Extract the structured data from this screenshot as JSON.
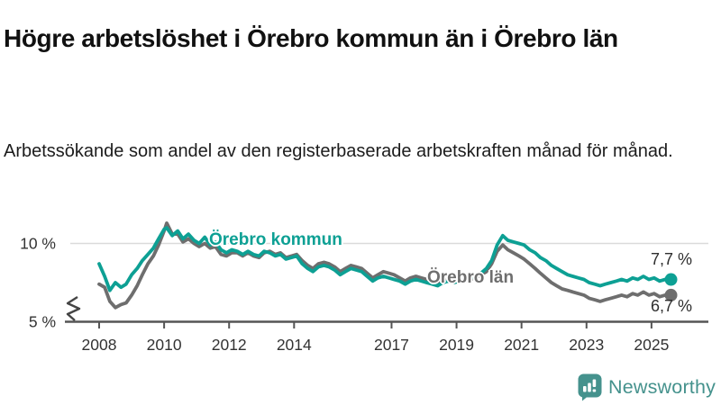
{
  "header": {
    "title": "Högre arbetslöshet i Örebro kommun än i Örebro län",
    "subtitle": "Arbetssökande som andel av den registerbaserade arbetskraften månad för månad."
  },
  "chart_data": {
    "type": "line",
    "unit": "percent of registered labour force",
    "x_range": [
      2008,
      2025.6
    ],
    "x_ticks": [
      2008,
      2010,
      2012,
      2014,
      2017,
      2019,
      2021,
      2023,
      2025
    ],
    "y_axis": {
      "ticks": [
        {
          "value": 10,
          "label": "10 %",
          "style": "gridline"
        },
        {
          "value": 5,
          "label": "5 %",
          "style": "baseline"
        }
      ],
      "axis_break": true
    },
    "colors": {
      "gridline": "#dadada",
      "axis": "#555555",
      "tick_text": "#333333"
    },
    "series": [
      {
        "name": "Örebro kommun",
        "color": "#0da094",
        "end_label": "7,7 %",
        "end_value": 7.7,
        "points": [
          [
            2008.0,
            8.7
          ],
          [
            2008.17,
            7.9
          ],
          [
            2008.33,
            7.0
          ],
          [
            2008.5,
            7.5
          ],
          [
            2008.67,
            7.2
          ],
          [
            2008.83,
            7.4
          ],
          [
            2009.0,
            8.0
          ],
          [
            2009.17,
            8.4
          ],
          [
            2009.33,
            8.9
          ],
          [
            2009.5,
            9.3
          ],
          [
            2009.67,
            9.7
          ],
          [
            2009.83,
            10.3
          ],
          [
            2010.0,
            10.9
          ],
          [
            2010.08,
            11.0
          ],
          [
            2010.25,
            10.5
          ],
          [
            2010.42,
            10.8
          ],
          [
            2010.58,
            10.3
          ],
          [
            2010.75,
            10.6
          ],
          [
            2010.92,
            10.2
          ],
          [
            2011.08,
            10.0
          ],
          [
            2011.25,
            10.4
          ],
          [
            2011.42,
            9.9
          ],
          [
            2011.58,
            10.1
          ],
          [
            2011.75,
            9.6
          ],
          [
            2011.92,
            9.4
          ],
          [
            2012.08,
            9.6
          ],
          [
            2012.25,
            9.5
          ],
          [
            2012.42,
            9.3
          ],
          [
            2012.58,
            9.5
          ],
          [
            2012.75,
            9.3
          ],
          [
            2012.92,
            9.2
          ],
          [
            2013.08,
            9.5
          ],
          [
            2013.25,
            9.4
          ],
          [
            2013.42,
            9.2
          ],
          [
            2013.58,
            9.3
          ],
          [
            2013.75,
            9.0
          ],
          [
            2013.92,
            9.1
          ],
          [
            2014.08,
            9.2
          ],
          [
            2014.25,
            8.7
          ],
          [
            2014.42,
            8.4
          ],
          [
            2014.58,
            8.2
          ],
          [
            2014.75,
            8.5
          ],
          [
            2014.92,
            8.6
          ],
          [
            2015.08,
            8.5
          ],
          [
            2015.25,
            8.3
          ],
          [
            2015.42,
            8.0
          ],
          [
            2015.58,
            8.2
          ],
          [
            2015.75,
            8.4
          ],
          [
            2015.92,
            8.3
          ],
          [
            2016.08,
            8.2
          ],
          [
            2016.25,
            7.9
          ],
          [
            2016.42,
            7.6
          ],
          [
            2016.58,
            7.8
          ],
          [
            2016.75,
            7.9
          ],
          [
            2016.92,
            7.8
          ],
          [
            2017.08,
            7.7
          ],
          [
            2017.25,
            7.6
          ],
          [
            2017.42,
            7.4
          ],
          [
            2017.58,
            7.6
          ],
          [
            2017.75,
            7.7
          ],
          [
            2017.92,
            7.6
          ],
          [
            2018.08,
            7.5
          ],
          [
            2018.25,
            7.4
          ],
          [
            2018.42,
            7.3
          ],
          [
            2018.58,
            7.5
          ],
          [
            2018.75,
            7.6
          ],
          [
            2018.92,
            7.5
          ],
          [
            2019.08,
            7.6
          ],
          [
            2019.25,
            7.7
          ],
          [
            2019.42,
            7.8
          ],
          [
            2019.58,
            7.9
          ],
          [
            2019.75,
            8.1
          ],
          [
            2019.92,
            8.4
          ],
          [
            2020.08,
            8.9
          ],
          [
            2020.25,
            9.9
          ],
          [
            2020.42,
            10.5
          ],
          [
            2020.58,
            10.2
          ],
          [
            2020.75,
            10.1
          ],
          [
            2020.92,
            10.0
          ],
          [
            2021.08,
            9.9
          ],
          [
            2021.25,
            9.6
          ],
          [
            2021.42,
            9.4
          ],
          [
            2021.58,
            9.1
          ],
          [
            2021.75,
            8.9
          ],
          [
            2021.92,
            8.6
          ],
          [
            2022.08,
            8.4
          ],
          [
            2022.25,
            8.2
          ],
          [
            2022.42,
            8.0
          ],
          [
            2022.58,
            7.9
          ],
          [
            2022.75,
            7.8
          ],
          [
            2022.92,
            7.7
          ],
          [
            2023.08,
            7.5
          ],
          [
            2023.25,
            7.4
          ],
          [
            2023.42,
            7.3
          ],
          [
            2023.58,
            7.4
          ],
          [
            2023.75,
            7.5
          ],
          [
            2023.92,
            7.6
          ],
          [
            2024.08,
            7.7
          ],
          [
            2024.25,
            7.6
          ],
          [
            2024.42,
            7.8
          ],
          [
            2024.58,
            7.7
          ],
          [
            2024.75,
            7.9
          ],
          [
            2024.92,
            7.7
          ],
          [
            2025.08,
            7.8
          ],
          [
            2025.25,
            7.6
          ],
          [
            2025.42,
            7.7
          ],
          [
            2025.6,
            7.7
          ]
        ]
      },
      {
        "name": "Örebro län",
        "color": "#6e6e6e",
        "end_label": "6,7 %",
        "end_value": 6.7,
        "points": [
          [
            2008.0,
            7.4
          ],
          [
            2008.17,
            7.2
          ],
          [
            2008.33,
            6.3
          ],
          [
            2008.5,
            5.9
          ],
          [
            2008.67,
            6.1
          ],
          [
            2008.83,
            6.2
          ],
          [
            2009.0,
            6.7
          ],
          [
            2009.17,
            7.3
          ],
          [
            2009.33,
            8.0
          ],
          [
            2009.5,
            8.7
          ],
          [
            2009.67,
            9.2
          ],
          [
            2009.83,
            9.9
          ],
          [
            2010.0,
            10.8
          ],
          [
            2010.08,
            11.3
          ],
          [
            2010.25,
            10.6
          ],
          [
            2010.42,
            10.6
          ],
          [
            2010.58,
            10.1
          ],
          [
            2010.75,
            10.3
          ],
          [
            2010.92,
            10.0
          ],
          [
            2011.08,
            9.8
          ],
          [
            2011.25,
            10.0
          ],
          [
            2011.42,
            9.7
          ],
          [
            2011.58,
            9.8
          ],
          [
            2011.75,
            9.3
          ],
          [
            2011.92,
            9.2
          ],
          [
            2012.08,
            9.4
          ],
          [
            2012.25,
            9.4
          ],
          [
            2012.42,
            9.2
          ],
          [
            2012.58,
            9.4
          ],
          [
            2012.75,
            9.2
          ],
          [
            2012.92,
            9.1
          ],
          [
            2013.08,
            9.4
          ],
          [
            2013.25,
            9.5
          ],
          [
            2013.42,
            9.3
          ],
          [
            2013.58,
            9.4
          ],
          [
            2013.75,
            9.1
          ],
          [
            2013.92,
            9.2
          ],
          [
            2014.08,
            9.3
          ],
          [
            2014.25,
            8.9
          ],
          [
            2014.42,
            8.6
          ],
          [
            2014.58,
            8.4
          ],
          [
            2014.75,
            8.7
          ],
          [
            2014.92,
            8.8
          ],
          [
            2015.08,
            8.7
          ],
          [
            2015.25,
            8.5
          ],
          [
            2015.42,
            8.2
          ],
          [
            2015.58,
            8.4
          ],
          [
            2015.75,
            8.6
          ],
          [
            2015.92,
            8.5
          ],
          [
            2016.08,
            8.4
          ],
          [
            2016.25,
            8.1
          ],
          [
            2016.42,
            7.8
          ],
          [
            2016.58,
            8.0
          ],
          [
            2016.75,
            8.2
          ],
          [
            2016.92,
            8.1
          ],
          [
            2017.08,
            8.0
          ],
          [
            2017.25,
            7.8
          ],
          [
            2017.42,
            7.6
          ],
          [
            2017.58,
            7.8
          ],
          [
            2017.75,
            7.9
          ],
          [
            2017.92,
            7.8
          ],
          [
            2018.08,
            7.7
          ],
          [
            2018.25,
            7.5
          ],
          [
            2018.42,
            7.4
          ],
          [
            2018.58,
            7.6
          ],
          [
            2018.75,
            7.7
          ],
          [
            2018.92,
            7.5
          ],
          [
            2019.08,
            7.6
          ],
          [
            2019.25,
            7.6
          ],
          [
            2019.42,
            7.7
          ],
          [
            2019.58,
            7.8
          ],
          [
            2019.75,
            8.0
          ],
          [
            2019.92,
            8.2
          ],
          [
            2020.08,
            8.7
          ],
          [
            2020.25,
            9.5
          ],
          [
            2020.42,
            9.9
          ],
          [
            2020.58,
            9.6
          ],
          [
            2020.75,
            9.4
          ],
          [
            2020.92,
            9.2
          ],
          [
            2021.08,
            9.0
          ],
          [
            2021.25,
            8.7
          ],
          [
            2021.42,
            8.4
          ],
          [
            2021.58,
            8.1
          ],
          [
            2021.75,
            7.8
          ],
          [
            2021.92,
            7.5
          ],
          [
            2022.08,
            7.3
          ],
          [
            2022.25,
            7.1
          ],
          [
            2022.42,
            7.0
          ],
          [
            2022.58,
            6.9
          ],
          [
            2022.75,
            6.8
          ],
          [
            2022.92,
            6.7
          ],
          [
            2023.08,
            6.5
          ],
          [
            2023.25,
            6.4
          ],
          [
            2023.42,
            6.3
          ],
          [
            2023.58,
            6.4
          ],
          [
            2023.75,
            6.5
          ],
          [
            2023.92,
            6.6
          ],
          [
            2024.08,
            6.7
          ],
          [
            2024.25,
            6.6
          ],
          [
            2024.42,
            6.8
          ],
          [
            2024.58,
            6.7
          ],
          [
            2024.75,
            6.9
          ],
          [
            2024.92,
            6.7
          ],
          [
            2025.08,
            6.8
          ],
          [
            2025.25,
            6.6
          ],
          [
            2025.42,
            6.7
          ],
          [
            2025.6,
            6.7
          ]
        ]
      }
    ]
  },
  "footer": {
    "brand": "Newsworthy",
    "brand_color": "#45928d"
  }
}
